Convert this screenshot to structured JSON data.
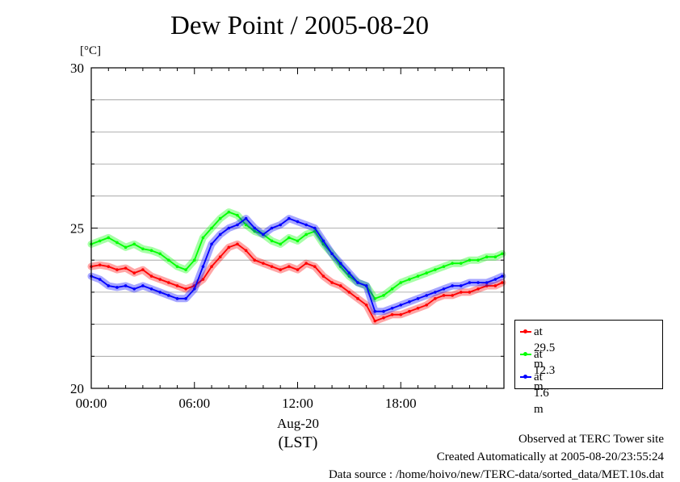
{
  "title": "Dew Point / 2005-08-20",
  "unit_label": "[°C]",
  "x_date_label": "Aug-20",
  "x_timezone_label": "(LST)",
  "legend": [
    {
      "label": "at 29.5 m",
      "color": "#ff0000"
    },
    {
      "label": "at 12.3 m",
      "color": "#00ff00"
    },
    {
      "label": "at 1.6 m",
      "color": "#0000ff"
    }
  ],
  "footer": {
    "line1": "Observed at TERC Tower site",
    "line2": "Created Automatically at 2005-08-20/23:55:24",
    "line3": "Data source : /home/hoivo/new/TERC-data/sorted_data/MET.10s.dat"
  },
  "chart_data": {
    "type": "line",
    "title": "Dew Point / 2005-08-20",
    "ylabel": "[°C]",
    "xlabel": "Aug-20 (LST)",
    "xlim_hours": [
      0,
      24
    ],
    "ylim": [
      20,
      30
    ],
    "y_ticks": [
      "20",
      "25",
      "30"
    ],
    "y_minor_ticks": [
      21,
      22,
      23,
      24,
      26,
      27,
      28,
      29
    ],
    "x_ticks": [
      "00:00",
      "06:00",
      "12:00",
      "18:00"
    ],
    "x_tick_hours": [
      0,
      6,
      12,
      18
    ],
    "grid": true,
    "legend_position": "bottom-right, outside plot",
    "series": [
      {
        "name": "at 29.5 m",
        "color": "#ff0000",
        "x_hours": [
          0,
          0.5,
          1,
          1.5,
          2,
          2.5,
          3,
          3.5,
          4,
          4.5,
          5,
          5.5,
          6,
          6.5,
          7,
          7.5,
          8,
          8.5,
          9,
          9.5,
          10,
          10.5,
          11,
          11.5,
          12,
          12.5,
          13,
          13.5,
          14,
          14.5,
          15,
          15.5,
          16,
          16.5,
          17,
          17.5,
          18,
          18.5,
          19,
          19.5,
          20,
          20.5,
          21,
          21.5,
          22,
          22.5,
          23,
          23.5,
          23.9
        ],
        "values": [
          23.8,
          23.85,
          23.8,
          23.7,
          23.75,
          23.6,
          23.7,
          23.5,
          23.4,
          23.3,
          23.2,
          23.1,
          23.2,
          23.4,
          23.8,
          24.1,
          24.4,
          24.5,
          24.3,
          24.0,
          23.9,
          23.8,
          23.7,
          23.8,
          23.7,
          23.9,
          23.8,
          23.5,
          23.3,
          23.2,
          23.0,
          22.8,
          22.6,
          22.1,
          22.2,
          22.3,
          22.3,
          22.4,
          22.5,
          22.6,
          22.8,
          22.9,
          22.9,
          23.0,
          23.0,
          23.1,
          23.2,
          23.2,
          23.3
        ]
      },
      {
        "name": "at 12.3 m",
        "color": "#00ff00",
        "x_hours": [
          0,
          0.5,
          1,
          1.5,
          2,
          2.5,
          3,
          3.5,
          4,
          4.5,
          5,
          5.5,
          6,
          6.5,
          7,
          7.5,
          8,
          8.5,
          9,
          9.5,
          10,
          10.5,
          11,
          11.5,
          12,
          12.5,
          13,
          13.5,
          14,
          14.5,
          15,
          15.5,
          16,
          16.5,
          17,
          17.5,
          18,
          18.5,
          19,
          19.5,
          20,
          20.5,
          21,
          21.5,
          22,
          22.5,
          23,
          23.5,
          23.9
        ],
        "values": [
          24.5,
          24.6,
          24.7,
          24.55,
          24.4,
          24.5,
          24.35,
          24.3,
          24.2,
          24.0,
          23.8,
          23.7,
          24.0,
          24.7,
          25.0,
          25.3,
          25.5,
          25.4,
          25.1,
          24.9,
          24.8,
          24.6,
          24.5,
          24.7,
          24.6,
          24.8,
          24.9,
          24.5,
          24.2,
          23.8,
          23.5,
          23.3,
          23.2,
          22.8,
          22.9,
          23.1,
          23.3,
          23.4,
          23.5,
          23.6,
          23.7,
          23.8,
          23.9,
          23.9,
          24.0,
          24.0,
          24.1,
          24.1,
          24.2
        ]
      },
      {
        "name": "at 1.6 m",
        "color": "#0000ff",
        "x_hours": [
          0,
          0.5,
          1,
          1.5,
          2,
          2.5,
          3,
          3.5,
          4,
          4.5,
          5,
          5.5,
          6,
          6.5,
          7,
          7.5,
          8,
          8.5,
          9,
          9.5,
          10,
          10.5,
          11,
          11.5,
          12,
          12.5,
          13,
          13.5,
          14,
          14.5,
          15,
          15.5,
          16,
          16.5,
          17,
          17.5,
          18,
          18.5,
          19,
          19.5,
          20,
          20.5,
          21,
          21.5,
          22,
          22.5,
          23,
          23.5,
          23.9
        ],
        "values": [
          23.5,
          23.4,
          23.2,
          23.15,
          23.2,
          23.1,
          23.2,
          23.1,
          23.0,
          22.9,
          22.8,
          22.8,
          23.1,
          23.8,
          24.5,
          24.8,
          25.0,
          25.1,
          25.3,
          25.0,
          24.8,
          25.0,
          25.1,
          25.3,
          25.2,
          25.1,
          25.0,
          24.6,
          24.2,
          23.9,
          23.6,
          23.3,
          23.2,
          22.4,
          22.4,
          22.5,
          22.6,
          22.7,
          22.8,
          22.9,
          23.0,
          23.1,
          23.2,
          23.2,
          23.3,
          23.3,
          23.3,
          23.4,
          23.5
        ]
      }
    ]
  }
}
